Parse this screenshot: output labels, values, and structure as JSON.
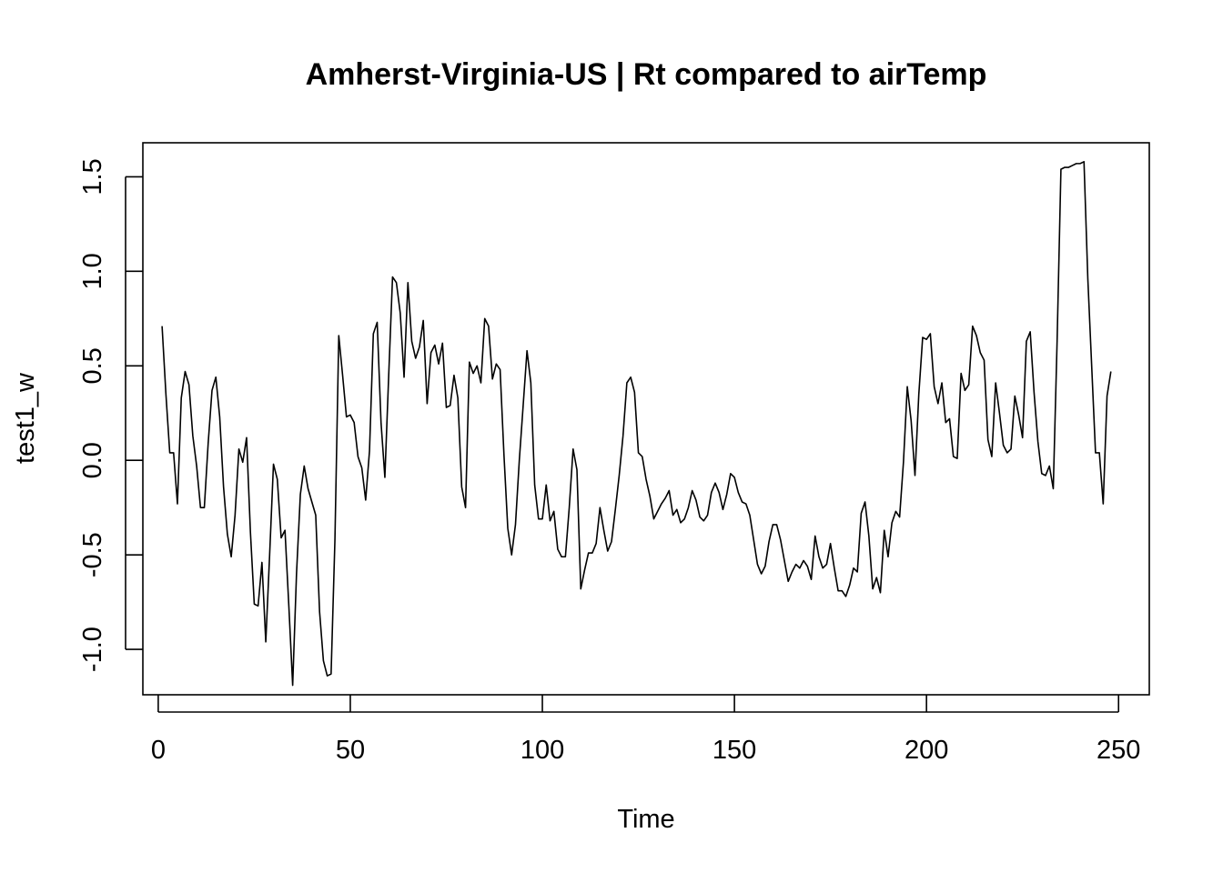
{
  "chart_data": {
    "type": "line",
    "title": "Amherst-Virginia-US | Rt compared to airTemp",
    "xlabel": "Time",
    "ylabel": "test1_w",
    "xlim": [
      -4,
      258
    ],
    "ylim": [
      -1.24,
      1.68
    ],
    "x_ticks": [
      0,
      50,
      100,
      150,
      200,
      250
    ],
    "x_tick_labels": [
      "0",
      "50",
      "100",
      "150",
      "200",
      "250"
    ],
    "y_ticks": [
      -1.0,
      -0.5,
      0.0,
      0.5,
      1.0,
      1.5
    ],
    "y_tick_labels": [
      "-1.0",
      "-0.5",
      "0.0",
      "0.5",
      "1.0",
      "1.5"
    ],
    "grid": false,
    "series": [
      {
        "x_start": 1,
        "values": [
          0.71,
          0.35,
          0.04,
          0.04,
          -0.23,
          0.33,
          0.47,
          0.4,
          0.13,
          -0.03,
          -0.25,
          -0.25,
          0.09,
          0.37,
          0.44,
          0.23,
          -0.14,
          -0.39,
          -0.51,
          -0.29,
          0.06,
          -0.01,
          0.12,
          -0.38,
          -0.76,
          -0.77,
          -0.54,
          -0.96,
          -0.5,
          -0.02,
          -0.1,
          -0.41,
          -0.37,
          -0.77,
          -1.19,
          -0.6,
          -0.18,
          -0.03,
          -0.15,
          -0.22,
          -0.29,
          -0.8,
          -1.06,
          -1.14,
          -1.13,
          -0.42,
          0.66,
          0.45,
          0.23,
          0.24,
          0.2,
          0.02,
          -0.04,
          -0.21,
          0.05,
          0.67,
          0.73,
          0.2,
          -0.09,
          0.45,
          0.97,
          0.94,
          0.78,
          0.44,
          0.94,
          0.63,
          0.54,
          0.6,
          0.74,
          0.3,
          0.57,
          0.61,
          0.51,
          0.62,
          0.28,
          0.29,
          0.45,
          0.33,
          -0.14,
          -0.25,
          0.52,
          0.46,
          0.5,
          0.41,
          0.75,
          0.71,
          0.43,
          0.51,
          0.48,
          0.03,
          -0.36,
          -0.5,
          -0.34,
          0.0,
          0.29,
          0.58,
          0.41,
          -0.13,
          -0.31,
          -0.31,
          -0.13,
          -0.32,
          -0.27,
          -0.47,
          -0.51,
          -0.51,
          -0.25,
          0.06,
          -0.05,
          -0.68,
          -0.58,
          -0.49,
          -0.49,
          -0.44,
          -0.25,
          -0.37,
          -0.48,
          -0.43,
          -0.26,
          -0.08,
          0.13,
          0.41,
          0.44,
          0.36,
          0.04,
          0.02,
          -0.1,
          -0.19,
          -0.31,
          -0.27,
          -0.23,
          -0.2,
          -0.16,
          -0.29,
          -0.26,
          -0.33,
          -0.31,
          -0.25,
          -0.16,
          -0.21,
          -0.3,
          -0.32,
          -0.29,
          -0.17,
          -0.12,
          -0.17,
          -0.26,
          -0.18,
          -0.07,
          -0.09,
          -0.17,
          -0.22,
          -0.23,
          -0.29,
          -0.42,
          -0.55,
          -0.6,
          -0.56,
          -0.43,
          -0.34,
          -0.34,
          -0.42,
          -0.53,
          -0.64,
          -0.59,
          -0.55,
          -0.57,
          -0.53,
          -0.56,
          -0.63,
          -0.4,
          -0.51,
          -0.57,
          -0.55,
          -0.44,
          -0.57,
          -0.69,
          -0.69,
          -0.72,
          -0.66,
          -0.57,
          -0.59,
          -0.28,
          -0.22,
          -0.4,
          -0.68,
          -0.62,
          -0.7,
          -0.37,
          -0.51,
          -0.33,
          -0.27,
          -0.3,
          -0.01,
          0.39,
          0.21,
          -0.08,
          0.35,
          0.65,
          0.64,
          0.67,
          0.39,
          0.3,
          0.41,
          0.2,
          0.22,
          0.02,
          0.01,
          0.46,
          0.37,
          0.4,
          0.71,
          0.66,
          0.57,
          0.53,
          0.11,
          0.02,
          0.41,
          0.25,
          0.08,
          0.04,
          0.06,
          0.34,
          0.24,
          0.12,
          0.63,
          0.68,
          0.36,
          0.1,
          -0.07,
          -0.08,
          -0.03,
          -0.15,
          0.63,
          1.54,
          1.55,
          1.55,
          1.56,
          1.57,
          1.57,
          1.58,
          0.96,
          0.5,
          0.04,
          0.04,
          -0.23,
          0.34,
          0.47
        ]
      }
    ]
  }
}
